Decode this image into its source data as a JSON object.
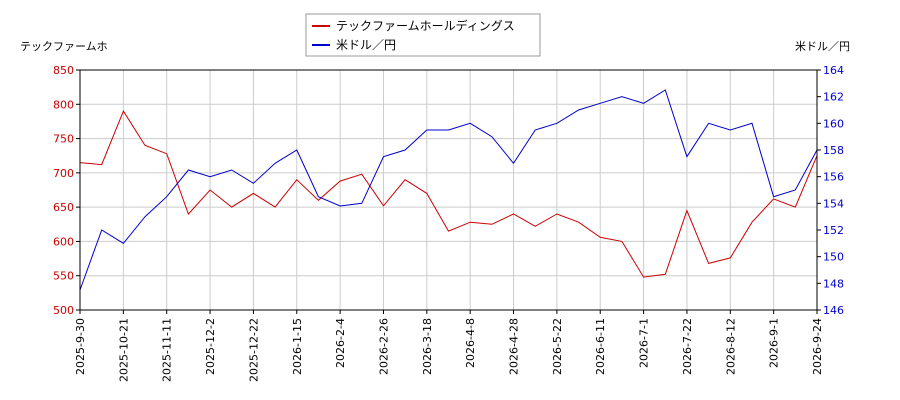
{
  "chart_data": {
    "type": "line",
    "left_axis_label": "テックファームホ",
    "right_axis_label": "米ドル／円",
    "x_tick_labels": [
      "2025-9-30",
      "2025-10-21",
      "2025-11-11",
      "2025-12-2",
      "2025-12-22",
      "2026-1-15",
      "2026-2-4",
      "2026-2-26",
      "2026-3-18",
      "2026-4-8",
      "2026-4-28",
      "2026-5-22",
      "2026-6-11",
      "2026-7-1",
      "2026-7-22",
      "2026-8-12",
      "2026-9-1",
      "2026-9-24"
    ],
    "left_axis": {
      "ylim": [
        500,
        850
      ],
      "ticks": [
        500,
        550,
        600,
        650,
        700,
        750,
        800,
        850
      ],
      "color": "#cc0000"
    },
    "right_axis": {
      "ylim": [
        146,
        164
      ],
      "ticks": [
        146,
        148,
        150,
        152,
        154,
        156,
        158,
        160,
        162,
        164
      ],
      "color": "#0000cc"
    },
    "legend": {
      "placement": "top-center"
    },
    "grid": true,
    "series": [
      {
        "name": "テックファームホールディングス",
        "color": "#cc0000",
        "axis": "left",
        "x": [
          0,
          0.5,
          1,
          1.5,
          2,
          2.5,
          3,
          3.5,
          4,
          4.5,
          5,
          5.5,
          6,
          6.5,
          7,
          7.5,
          8,
          8.5,
          9,
          9.5,
          10,
          10.5,
          11,
          11.5,
          12,
          12.5,
          13,
          13.5,
          14,
          14.5,
          15,
          15.5,
          16,
          16.5,
          17
        ],
        "values": [
          715,
          712,
          790,
          740,
          728,
          640,
          675,
          650,
          670,
          650,
          690,
          660,
          688,
          698,
          652,
          690,
          670,
          615,
          628,
          625,
          640,
          622,
          640,
          628,
          606,
          600,
          548,
          552,
          645,
          568,
          576,
          628,
          662,
          650,
          725
        ]
      },
      {
        "name": "米ドル／円",
        "color": "#0000cc",
        "axis": "right",
        "x": [
          0,
          0.5,
          1,
          1.5,
          2,
          2.5,
          3,
          3.5,
          4,
          4.5,
          5,
          5.5,
          6,
          6.5,
          7,
          7.5,
          8,
          8.5,
          9,
          9.5,
          10,
          10.5,
          11,
          11.5,
          12,
          12.5,
          13,
          13.5,
          14,
          14.5,
          15,
          15.5,
          16,
          16.5,
          17
        ],
        "values": [
          147.5,
          152.0,
          151.0,
          153.0,
          154.5,
          156.5,
          156.0,
          156.5,
          155.5,
          157.0,
          158.0,
          154.5,
          153.8,
          154.0,
          157.5,
          158.0,
          159.5,
          159.5,
          160.0,
          159.0,
          157.0,
          159.5,
          160.0,
          161.0,
          161.5,
          162.0,
          161.5,
          162.5,
          157.5,
          160.0,
          159.5,
          160.0,
          154.5,
          155.0,
          158.0
        ]
      }
    ]
  }
}
